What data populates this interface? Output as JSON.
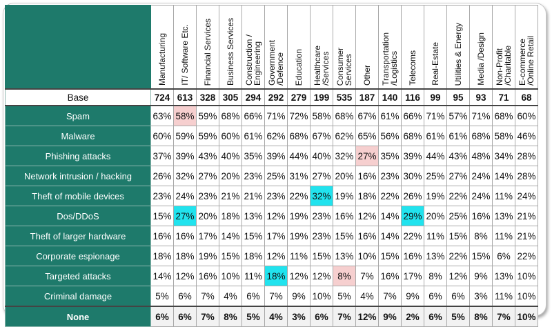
{
  "columns": [
    "Manufacturing",
    "IT/ Software Etc.",
    "Financial Services",
    "Business Services",
    "Construction /\nEngineering",
    "Government\n/Defence",
    "Education",
    "Healthcare\n/Services",
    "Consumer\nServices",
    "Other",
    "Transportation\n/Logistics",
    "Telecoms",
    "Real-Estate",
    "Utilities & Energy",
    "Media /Design",
    "Non-Profit\n/Charitable",
    "E-commerce\n/Online Retail"
  ],
  "base": {
    "label": "Base",
    "values": [
      "724",
      "613",
      "328",
      "305",
      "294",
      "292",
      "279",
      "199",
      "535",
      "187",
      "140",
      "116",
      "99",
      "95",
      "93",
      "71",
      "68"
    ]
  },
  "rows": [
    {
      "label": "Spam",
      "values": [
        "63%",
        "58%",
        "59%",
        "68%",
        "66%",
        "71%",
        "72%",
        "58%",
        "68%",
        "67%",
        "61%",
        "66%",
        "71%",
        "57%",
        "71%",
        "68%",
        "60%"
      ],
      "hl": {
        "1": "pink"
      }
    },
    {
      "label": "Malware",
      "values": [
        "60%",
        "59%",
        "59%",
        "60%",
        "61%",
        "62%",
        "68%",
        "67%",
        "62%",
        "65%",
        "56%",
        "68%",
        "61%",
        "61%",
        "68%",
        "58%",
        "46%"
      ],
      "hl": {}
    },
    {
      "label": "Phishing attacks",
      "values": [
        "37%",
        "39%",
        "43%",
        "40%",
        "35%",
        "39%",
        "44%",
        "40%",
        "32%",
        "27%",
        "35%",
        "39%",
        "44%",
        "43%",
        "48%",
        "34%",
        "28%"
      ],
      "hl": {
        "9": "pink"
      }
    },
    {
      "label": "Network intrusion / hacking",
      "values": [
        "26%",
        "32%",
        "27%",
        "20%",
        "23%",
        "25%",
        "31%",
        "27%",
        "20%",
        "16%",
        "23%",
        "30%",
        "25%",
        "27%",
        "24%",
        "14%",
        "28%"
      ],
      "hl": {}
    },
    {
      "label": "Theft of mobile devices",
      "values": [
        "23%",
        "24%",
        "23%",
        "21%",
        "21%",
        "23%",
        "22%",
        "32%",
        "19%",
        "18%",
        "22%",
        "26%",
        "19%",
        "22%",
        "24%",
        "11%",
        "24%"
      ],
      "hl": {
        "7": "cyan"
      }
    },
    {
      "label": "Dos/DDoS",
      "values": [
        "15%",
        "27%",
        "20%",
        "18%",
        "13%",
        "12%",
        "19%",
        "23%",
        "16%",
        "12%",
        "14%",
        "29%",
        "20%",
        "25%",
        "16%",
        "13%",
        "21%"
      ],
      "hl": {
        "1": "cyan",
        "11": "cyan"
      }
    },
    {
      "label": "Theft of larger hardware",
      "values": [
        "16%",
        "16%",
        "17%",
        "14%",
        "15%",
        "17%",
        "19%",
        "23%",
        "15%",
        "16%",
        "14%",
        "22%",
        "11%",
        "15%",
        "8%",
        "11%",
        "21%"
      ],
      "hl": {}
    },
    {
      "label": "Corporate espionage",
      "values": [
        "18%",
        "18%",
        "19%",
        "15%",
        "18%",
        "12%",
        "11%",
        "15%",
        "13%",
        "10%",
        "15%",
        "16%",
        "13%",
        "22%",
        "15%",
        "6%",
        "22%"
      ],
      "hl": {}
    },
    {
      "label": "Targeted attacks",
      "values": [
        "14%",
        "12%",
        "16%",
        "10%",
        "11%",
        "18%",
        "12%",
        "12%",
        "8%",
        "7%",
        "16%",
        "17%",
        "8%",
        "12%",
        "9%",
        "13%",
        "10%"
      ],
      "hl": {
        "5": "cyan",
        "8": "pink"
      }
    },
    {
      "label": "Criminal damage",
      "values": [
        "5%",
        "6%",
        "7%",
        "4%",
        "6%",
        "7%",
        "9%",
        "10%",
        "5%",
        "4%",
        "7%",
        "9%",
        "6%",
        "6%",
        "3%",
        "11%",
        "10%"
      ],
      "hl": {}
    }
  ],
  "none": {
    "label": "None",
    "values": [
      "6%",
      "6%",
      "7%",
      "8%",
      "5%",
      "4%",
      "3%",
      "6%",
      "7%",
      "12%",
      "9%",
      "2%",
      "6%",
      "5%",
      "8%",
      "7%",
      "10%"
    ]
  },
  "colors": {
    "label_bg": "#1e7a6b",
    "highlight_cyan": "#21e3ee",
    "highlight_pink": "#f6cfcf"
  }
}
